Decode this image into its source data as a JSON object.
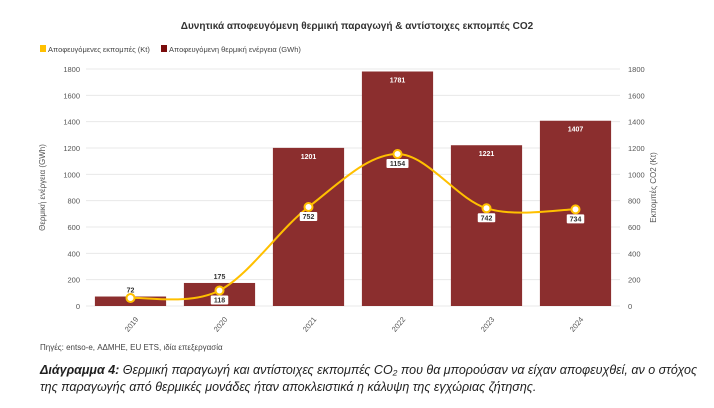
{
  "chart_data": {
    "type": "bar+line",
    "title": "Δυνητικά αποφευγόμενη θερμική παραγωγή & αντίστοιχες εκπομπές CO2",
    "categories": [
      "2019",
      "2020",
      "2021",
      "2022",
      "2023",
      "2024"
    ],
    "series": [
      {
        "name": "Αποφευγόμενη θερμική ενέργεια (GWh)",
        "type": "bar",
        "axis": "left",
        "color": "#8B2E2E",
        "values": [
          72,
          175,
          1201,
          1781,
          1221,
          1407
        ]
      },
      {
        "name": "Αποφευγόμενες εκπομπές (Kt)",
        "type": "line",
        "axis": "right",
        "color": "#FFC000",
        "values": [
          61,
          118,
          752,
          1154,
          742,
          734
        ]
      }
    ],
    "ylabel": "Θερμική ενέργεια (GWh)",
    "y2label": "Εκπομπές CO2 (Kt)",
    "ylim": [
      0,
      1800
    ],
    "y2lim": [
      0,
      1800
    ],
    "yticks": [
      0,
      200,
      400,
      600,
      800,
      1000,
      1200,
      1400,
      1600,
      1800
    ],
    "grid": true,
    "legend": "top-left"
  },
  "source": "Πηγές: entso-e, ΑΔΜΗΕ, EU ETS, ιδία επεξεργασία",
  "caption": {
    "label": "Διάγραμμα 4:",
    "text": "Θερμική παραγωγή και αντίστοιχες εκπομπές CO₂ που θα μπορούσαν να είχαν αποφευχθεί, αν ο στόχος της παραγωγής από θερμικές μονάδες ήταν αποκλειστικά η κάλυψη της εγχώριας ζήτησης."
  }
}
